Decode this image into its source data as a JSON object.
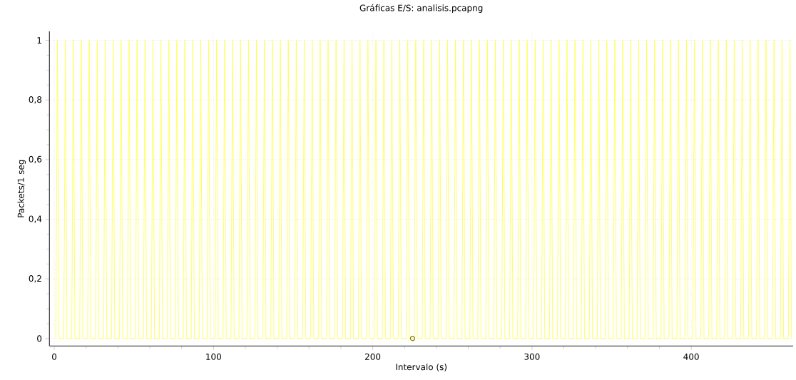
{
  "chart_data": {
    "type": "line",
    "title": "Gráficas E/S: analisis.pcapng",
    "xlabel": "Intervalo (s)",
    "ylabel": "Packets/1 seg",
    "xlim": [
      -3,
      464
    ],
    "ylim": [
      -0.025,
      1.03
    ],
    "xticks": [
      0,
      100,
      200,
      300,
      400
    ],
    "yticks": [
      {
        "value": 0,
        "label": "0"
      },
      {
        "value": 0.2,
        "label": "0,2"
      },
      {
        "value": 0.4,
        "label": "0,4"
      },
      {
        "value": 0.6,
        "label": "0,6"
      },
      {
        "value": 0.8,
        "label": "0,8"
      },
      {
        "value": 1,
        "label": "1"
      }
    ],
    "grid": true,
    "series": [
      {
        "color": "#ffff40",
        "marker": "none",
        "line_style": "solid",
        "x": [
          1,
          2,
          3,
          6,
          7,
          8,
          11,
          12,
          13,
          16,
          17,
          18,
          21,
          22,
          23,
          26,
          27,
          28,
          31,
          32,
          33,
          36,
          37,
          38,
          41,
          42,
          43,
          46,
          47,
          48,
          51,
          52,
          53,
          56,
          57,
          58,
          61,
          62,
          63,
          66,
          67,
          68,
          71,
          72,
          73,
          76,
          77,
          78,
          81,
          82,
          83,
          86,
          87,
          88,
          91,
          92,
          93,
          96,
          97,
          98,
          101,
          102,
          103,
          106,
          107,
          108,
          111,
          112,
          113,
          116,
          117,
          118,
          121,
          122,
          123,
          126,
          127,
          128,
          131,
          132,
          133,
          136,
          137,
          138,
          141,
          142,
          143,
          146,
          147,
          148,
          151,
          152,
          153,
          156,
          157,
          158,
          161,
          162,
          163,
          166,
          167,
          168,
          171,
          172,
          173,
          176,
          177,
          178,
          181,
          182,
          183,
          186,
          187,
          188,
          191,
          192,
          193,
          196,
          197,
          198,
          201,
          202,
          203,
          206,
          207,
          208,
          211,
          212,
          213,
          216,
          217,
          218,
          221,
          222,
          223,
          226,
          227,
          228,
          231,
          232,
          233,
          236,
          237,
          238,
          241,
          242,
          243,
          246,
          247,
          248,
          251,
          252,
          253,
          256,
          257,
          258,
          261,
          262,
          263,
          266,
          267,
          268,
          271,
          272,
          273,
          276,
          277,
          278,
          281,
          282,
          283,
          286,
          287,
          288,
          291,
          292,
          293,
          296,
          297,
          298,
          301,
          302,
          303,
          306,
          307,
          308,
          311,
          312,
          313,
          316,
          317,
          318,
          321,
          322,
          323,
          326,
          327,
          328,
          331,
          332,
          333,
          336,
          337,
          338,
          341,
          342,
          343,
          346,
          347,
          348,
          351,
          352,
          353,
          356,
          357,
          358,
          361,
          362,
          363,
          366,
          367,
          368,
          371,
          372,
          373,
          376,
          377,
          378,
          381,
          382,
          383,
          386,
          387,
          388,
          391,
          392,
          393,
          396,
          397,
          398,
          401,
          402,
          403,
          406,
          407,
          408,
          411,
          412,
          413,
          416,
          417,
          418,
          421,
          422,
          423,
          426,
          427,
          428,
          431,
          432,
          433,
          436,
          437,
          438,
          441,
          442,
          443,
          446,
          447,
          448,
          451,
          452,
          453,
          456,
          457,
          458,
          461,
          462,
          463
        ],
        "values": [
          0,
          1,
          0,
          0,
          1,
          0,
          0,
          1,
          0,
          0,
          1,
          0,
          0,
          1,
          0,
          0,
          1,
          0,
          0,
          1,
          0,
          0,
          1,
          0,
          0,
          1,
          0,
          0,
          1,
          0,
          0,
          1,
          0,
          0,
          1,
          0,
          0,
          1,
          0,
          0,
          1,
          0,
          0,
          1,
          0,
          0,
          1,
          0,
          0,
          1,
          0,
          0,
          1,
          0,
          0,
          1,
          0,
          0,
          1,
          0,
          0,
          1,
          0,
          0,
          1,
          0,
          0,
          1,
          0,
          0,
          1,
          0,
          0,
          1,
          0,
          0,
          1,
          0,
          0,
          1,
          0,
          0,
          1,
          0,
          0,
          1,
          0,
          0,
          1,
          0,
          0,
          1,
          0,
          0,
          1,
          0,
          0,
          1,
          0,
          0,
          1,
          0,
          0,
          1,
          0,
          0,
          1,
          0,
          0,
          1,
          0,
          0,
          1,
          0,
          0,
          1,
          0,
          0,
          1,
          0,
          0,
          1,
          0,
          0,
          1,
          0,
          0,
          1,
          0,
          0,
          1,
          0,
          0,
          1,
          0,
          0,
          1,
          0,
          0,
          1,
          0,
          0,
          1,
          0,
          0,
          1,
          0,
          0,
          1,
          0,
          0,
          1,
          0,
          0,
          1,
          0,
          0,
          1,
          0,
          0,
          1,
          0,
          0,
          1,
          0,
          0,
          1,
          0,
          0,
          1,
          0,
          0,
          1,
          0,
          0,
          1,
          0,
          0,
          1,
          0,
          0,
          1,
          0,
          0,
          1,
          0,
          0,
          1,
          0,
          0,
          1,
          0,
          0,
          1,
          0,
          0,
          1,
          0,
          0,
          1,
          0,
          0,
          1,
          0,
          0,
          1,
          0,
          0,
          1,
          0,
          0,
          1,
          0,
          0,
          1,
          0,
          0,
          1,
          0,
          0,
          1,
          0,
          0,
          1,
          0,
          0,
          1,
          0,
          0,
          1,
          0,
          0,
          1,
          0,
          0,
          1,
          0,
          0,
          1,
          0,
          0,
          1,
          0,
          0,
          1,
          0,
          0,
          1,
          0,
          0,
          1,
          0,
          0,
          1,
          0,
          0,
          1,
          0,
          0,
          1,
          0,
          0,
          1,
          0,
          0,
          1,
          0,
          0,
          1,
          0,
          0,
          1,
          0,
          0,
          1,
          0,
          0,
          1,
          0
        ]
      },
      {
        "type": "scatter",
        "color": "#808000",
        "marker": "circle",
        "x": [
          225
        ],
        "values": [
          0
        ]
      }
    ]
  }
}
